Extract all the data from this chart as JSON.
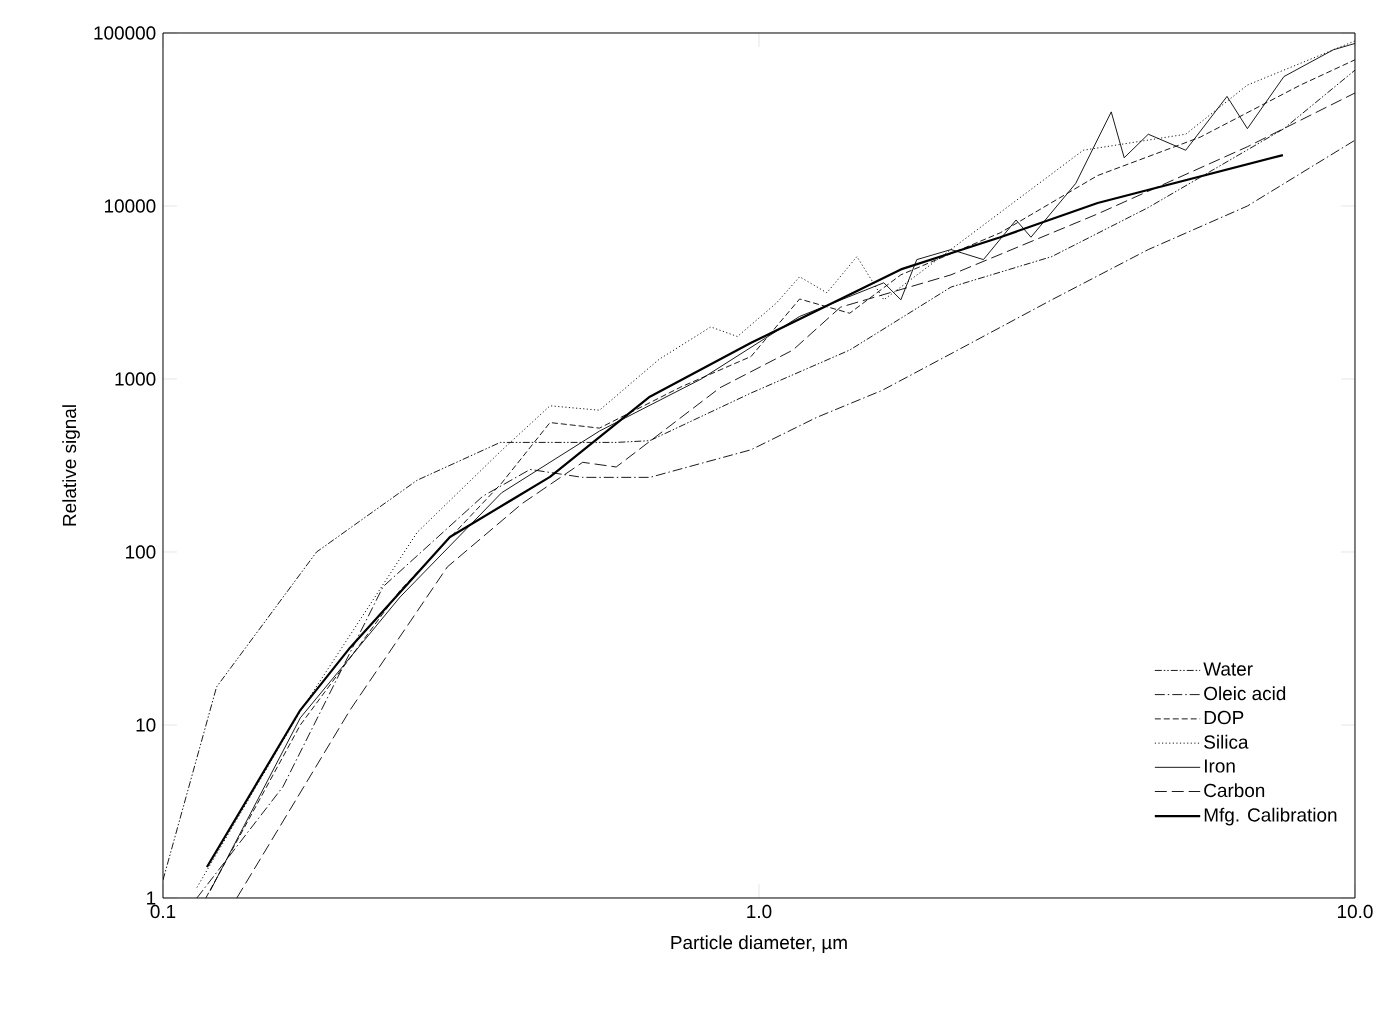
{
  "chart_data": {
    "type": "line",
    "xlabel": "Particle diameter, µm",
    "ylabel": "Relative signal",
    "log": "xy",
    "xlim": [
      0.1,
      10
    ],
    "ylim": [
      1,
      100000
    ],
    "xticks": [
      0.1,
      {
        "value": 1,
        "label": "1.0"
      },
      {
        "value": 10,
        "label": "10.0"
      }
    ],
    "yticks": [
      1,
      10,
      100,
      1000,
      10000,
      100000
    ],
    "grid": false,
    "legend": "bottom right",
    "marker": "none",
    "series": [
      {
        "name": "Water",
        "color": "#000000",
        "line_style": "dashed",
        "x": [
          0.1,
          0.123,
          0.181,
          0.267,
          0.368,
          0.576,
          0.656,
          0.97,
          1.42,
          2.1,
          3.1,
          4.5,
          7.6,
          10
        ],
        "values": [
          1.27,
          16.6,
          100,
          260,
          430,
          430,
          440,
          830,
          1470,
          3400,
          5100,
          9800,
          28000,
          61000
        ]
      },
      {
        "name": "Oleic acid",
        "color": "#000000",
        "line_style": "dashed",
        "x": [
          0.114,
          0.159,
          0.234,
          0.344,
          0.413,
          0.506,
          0.656,
          0.97,
          1.25,
          1.61,
          2.1,
          3.1,
          4.5,
          6.6,
          10
        ],
        "values": [
          1,
          4.4,
          63,
          210,
          300,
          270,
          270,
          390,
          600,
          860,
          1400,
          2870,
          5600,
          10000,
          24000
        ]
      },
      {
        "name": "DOP",
        "color": "#000000",
        "line_style": "dashed",
        "x": [
          0.118,
          0.17,
          0.25,
          0.37,
          0.446,
          0.54,
          0.74,
          0.97,
          1.17,
          1.42,
          1.73,
          2.54,
          3.7,
          5.5,
          8.1,
          10
        ],
        "values": [
          1,
          10,
          60,
          250,
          560,
          520,
          900,
          1350,
          2900,
          2400,
          4000,
          7000,
          15000,
          25000,
          50000,
          70000
        ]
      },
      {
        "name": "Silica",
        "color": "#000000",
        "line_style": "dotted",
        "x": [
          0.114,
          0.17,
          0.267,
          0.368,
          0.446,
          0.54,
          0.68,
          0.83,
          0.92,
          1.07,
          1.17,
          1.3,
          1.46,
          1.62,
          3.5,
          5.2,
          6.6,
          10
        ],
        "values": [
          1.15,
          12,
          130,
          380,
          700,
          660,
          1300,
          2000,
          1760,
          2750,
          3900,
          3150,
          5100,
          2870,
          21000,
          26000,
          50000,
          90000
        ]
      },
      {
        "name": "Iron",
        "color": "#000000",
        "line_style": "solid",
        "x": [
          0.12,
          0.17,
          0.25,
          0.37,
          0.54,
          0.8,
          1.17,
          1.62,
          1.73,
          1.84,
          2.1,
          2.38,
          2.7,
          2.86,
          3.4,
          3.9,
          4.1,
          4.5,
          5.2,
          6.1,
          6.6,
          7.6,
          9.2,
          10
        ],
        "values": [
          1.1,
          11,
          55,
          220,
          500,
          1000,
          2300,
          3600,
          2870,
          4900,
          5600,
          4900,
          8300,
          6600,
          13500,
          35000,
          19000,
          26000,
          21000,
          43000,
          28000,
          56000,
          80000,
          87000
        ]
      },
      {
        "name": "Carbon",
        "color": "#000000",
        "line_style": "dashed",
        "x": [
          0.133,
          0.206,
          0.3,
          0.4,
          0.506,
          0.576,
          0.86,
          1.14,
          1.37,
          2.1,
          3.7,
          6.6,
          10
        ],
        "values": [
          1,
          12.2,
          82,
          190,
          330,
          310,
          890,
          1470,
          2600,
          4000,
          9000,
          22000,
          45000
        ]
      },
      {
        "name": "Mfg. Calibration",
        "color": "#000000",
        "line_style": "solid",
        "x": [
          0.1185,
          0.17,
          0.206,
          0.303,
          0.446,
          0.656,
          0.97,
          1.73,
          2.54,
          3.7,
          7.57
        ],
        "values": [
          1.51,
          12.2,
          28,
          122,
          272,
          790,
          1620,
          4300,
          6600,
          10400,
          19700
        ]
      }
    ]
  }
}
